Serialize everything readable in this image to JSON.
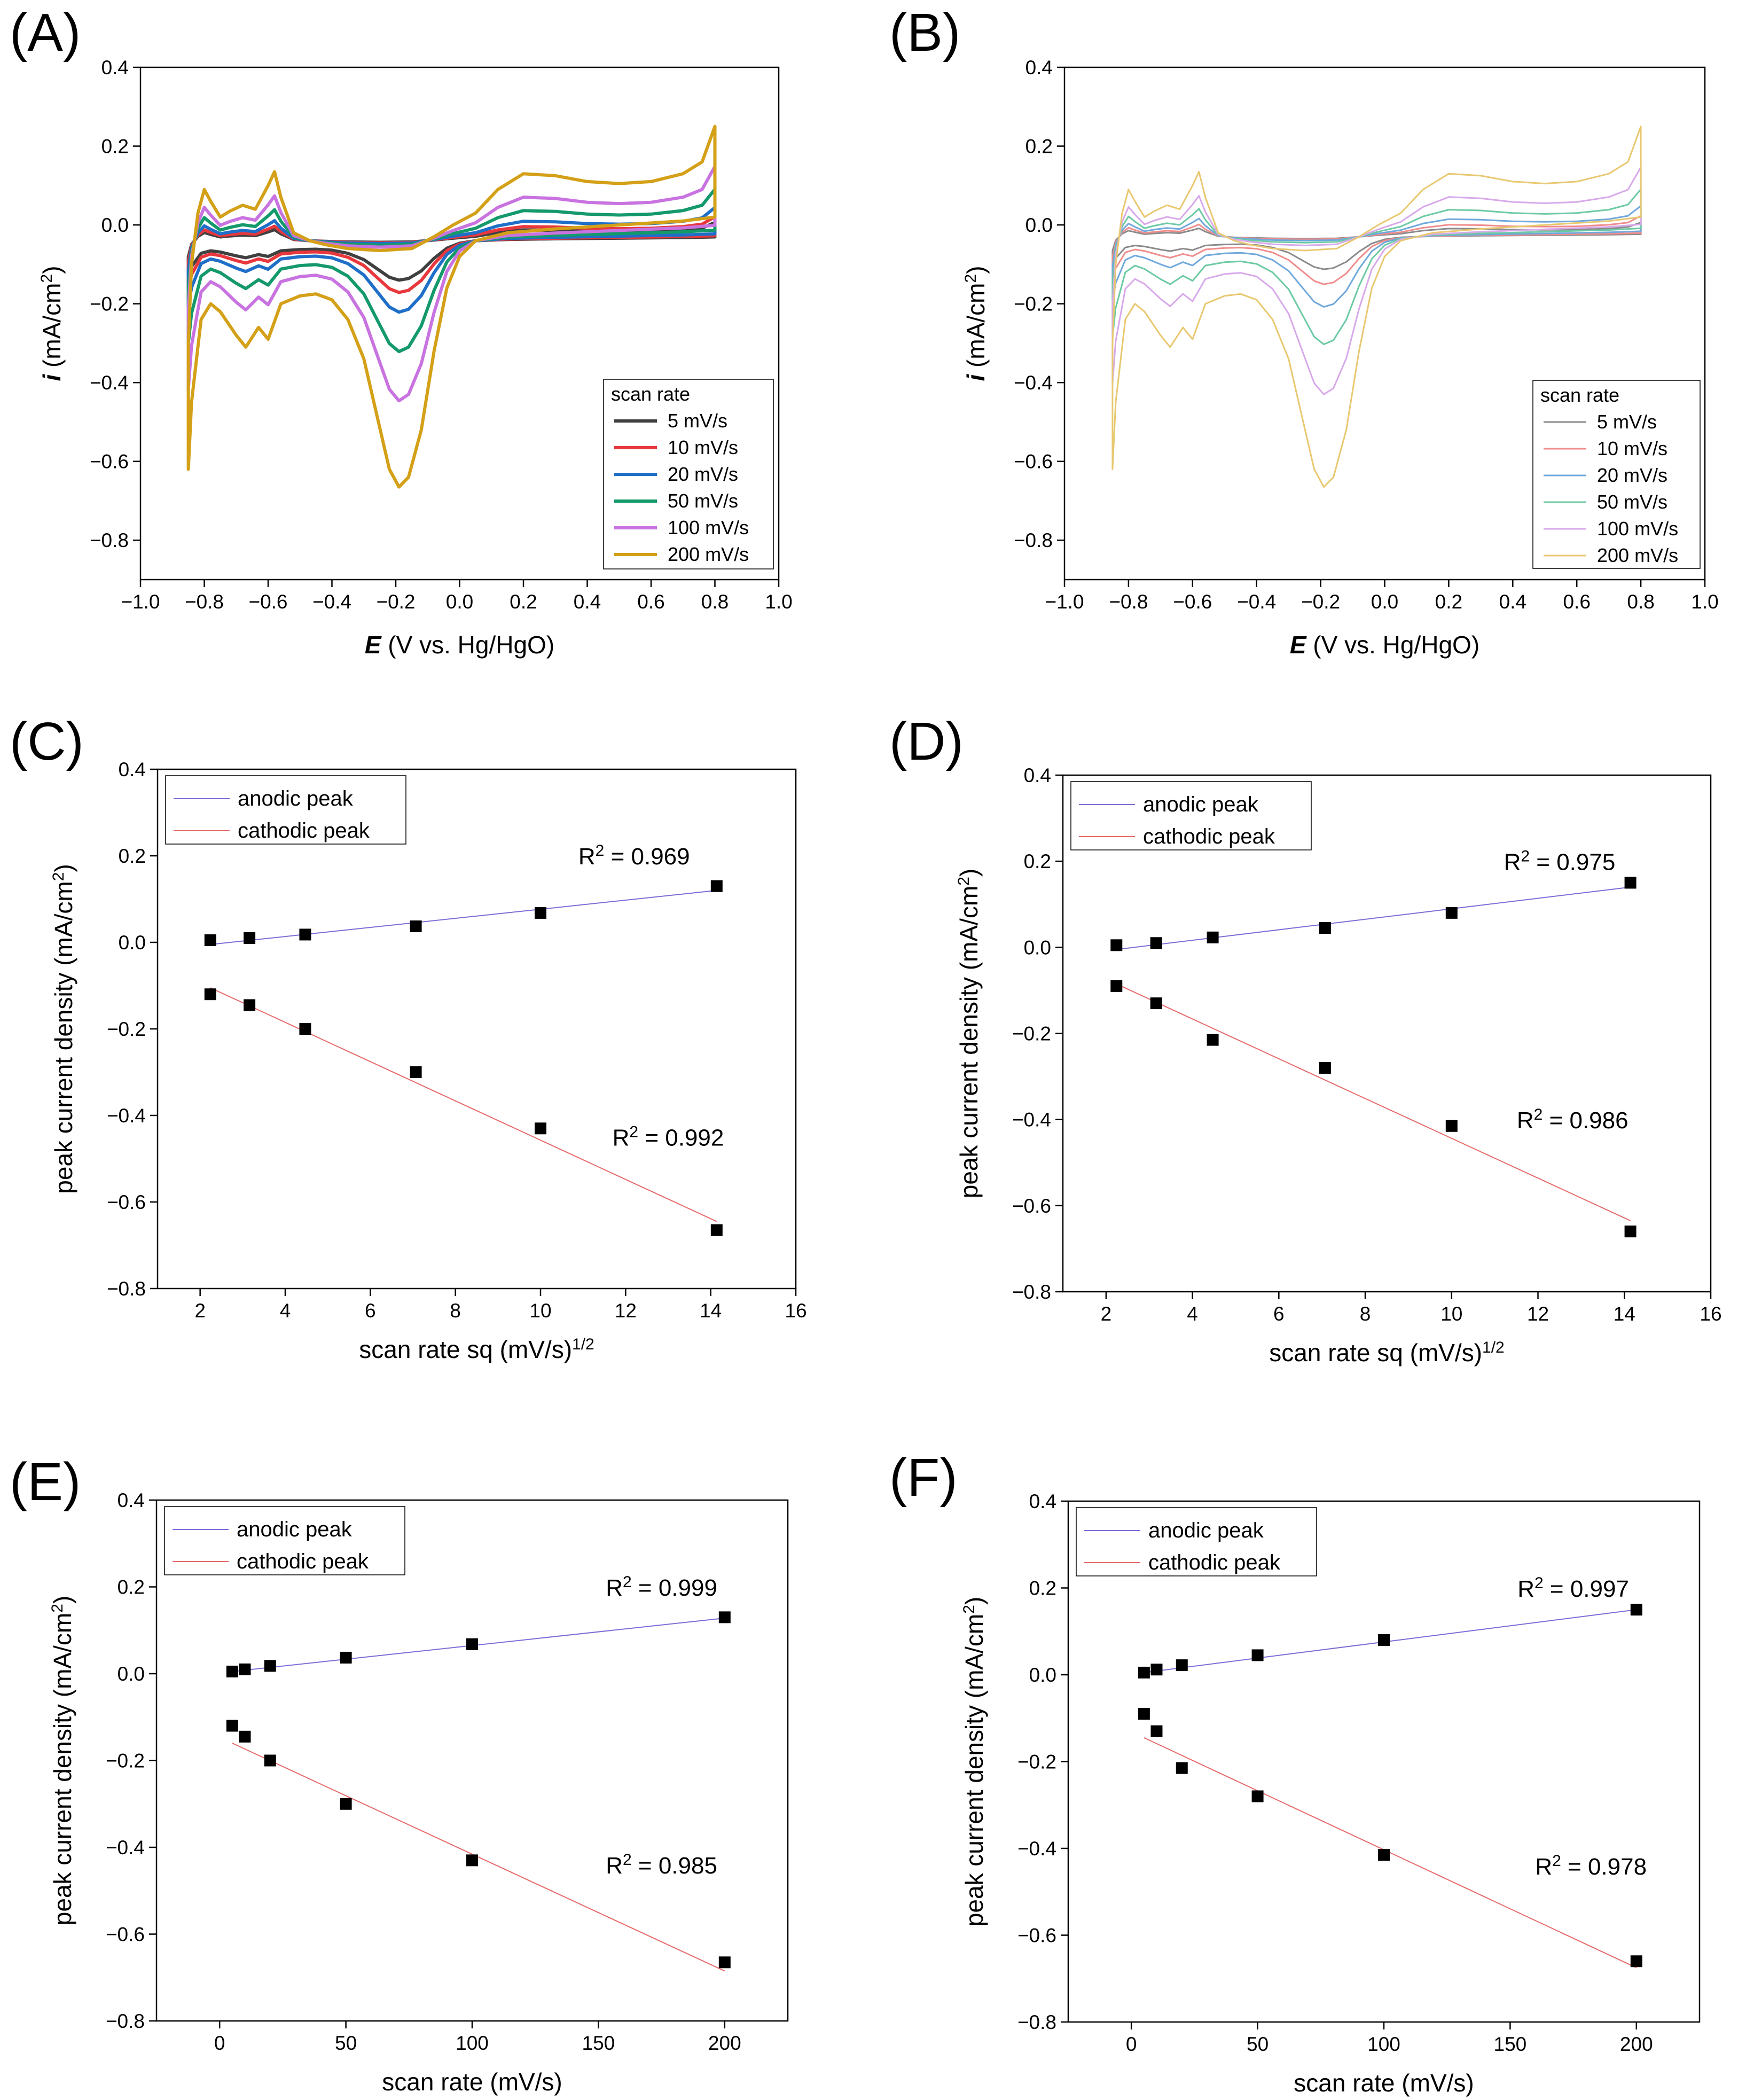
{
  "chart_data": [
    {
      "panel": "(A)",
      "type": "line",
      "xlabel_italic": "E",
      "xlabel_rest": " (V vs. Hg/HgO)",
      "ylabel_italic": "i",
      "ylabel_rest": " (mA/cm",
      "ylabel_sup": "2",
      "ylabel_end": ")",
      "xlim": [
        -1.0,
        1.0
      ],
      "ylim": [
        -0.9,
        0.4
      ],
      "xticks": [
        -1.0,
        -0.8,
        -0.6,
        -0.4,
        -0.2,
        0.0,
        0.2,
        0.4,
        0.6,
        0.8,
        1.0
      ],
      "xtick_labels": [
        "−1.0",
        "−0.8",
        "−0.6",
        "−0.4",
        "−0.2",
        "0.0",
        "0.2",
        "0.4",
        "0.6",
        "0.8",
        "1.0"
      ],
      "yticks": [
        -0.8,
        -0.6,
        -0.4,
        -0.2,
        0.0,
        0.2,
        0.4
      ],
      "ytick_labels": [
        "−0.8",
        "−0.6",
        "−0.4",
        "−0.2",
        "0.0",
        "0.2",
        "0.4"
      ],
      "legend_title": "scan rate",
      "series": [
        {
          "name": "5 mV/s",
          "color": "#404040",
          "scale": 0.16
        },
        {
          "name": "10 mV/s",
          "color": "#e8383d",
          "scale": 0.21
        },
        {
          "name": "20 mV/s",
          "color": "#1f6fc8",
          "scale": 0.29
        },
        {
          "name": "50 mV/s",
          "color": "#14996a",
          "scale": 0.45
        },
        {
          "name": "100 mV/s",
          "color": "#c873e0",
          "scale": 0.65
        },
        {
          "name": "200 mV/s",
          "color": "#d4a017",
          "scale": 1.0
        }
      ]
    },
    {
      "panel": "(B)",
      "type": "line",
      "xlabel_italic": "E",
      "xlabel_rest": " (V vs. Hg/HgO)",
      "ylabel_italic": "i",
      "ylabel_rest": " (mA/cm",
      "ylabel_sup": "2",
      "ylabel_end": ")",
      "xlim": [
        -1.0,
        1.0
      ],
      "ylim": [
        -0.9,
        0.4
      ],
      "xticks": [
        -1.0,
        -0.8,
        -0.6,
        -0.4,
        -0.2,
        0.0,
        0.2,
        0.4,
        0.6,
        0.8,
        1.0
      ],
      "xtick_labels": [
        "−1.0",
        "−0.8",
        "−0.6",
        "−0.4",
        "−0.2",
        "0.0",
        "0.2",
        "0.4",
        "0.6",
        "0.8",
        "1.0"
      ],
      "yticks": [
        -0.8,
        -0.6,
        -0.4,
        -0.2,
        0.0,
        0.2,
        0.4
      ],
      "ytick_labels": [
        "−0.8",
        "−0.6",
        "−0.4",
        "−0.2",
        "0.0",
        "0.2",
        "0.4"
      ],
      "legend_title": "scan rate",
      "series": [
        {
          "name": "5 mV/s",
          "color": "#8a8a8a",
          "scale": 0.13
        },
        {
          "name": "10 mV/s",
          "color": "#f08c8c",
          "scale": 0.19
        },
        {
          "name": "20 mV/s",
          "color": "#6fa8dc",
          "scale": 0.28
        },
        {
          "name": "50 mV/s",
          "color": "#6ccaa4",
          "scale": 0.43
        },
        {
          "name": "100 mV/s",
          "color": "#d8a9ea",
          "scale": 0.63
        },
        {
          "name": "200 mV/s",
          "color": "#e8c870",
          "scale": 1.0
        }
      ]
    },
    {
      "panel": "(C)",
      "type": "scatter",
      "xlabel": "scan rate sq (mV/s)",
      "xlabel_sup": "1/2",
      "ylabel": "peak current density (mA/cm",
      "ylabel_sup": "2",
      "ylabel_end": ")",
      "xlim": [
        1,
        16
      ],
      "ylim": [
        -0.8,
        0.4
      ],
      "xticks": [
        2,
        4,
        6,
        8,
        10,
        12,
        14,
        16
      ],
      "yticks": [
        -0.8,
        -0.6,
        -0.4,
        -0.2,
        0.0,
        0.2,
        0.4
      ],
      "ytick_labels": [
        "−0.8",
        "−0.6",
        "−0.4",
        "−0.2",
        "0.0",
        "0.2",
        "0.4"
      ],
      "x": [
        2.24,
        3.16,
        4.47,
        7.07,
        10.0,
        14.14
      ],
      "anodic": [
        0.005,
        0.01,
        0.018,
        0.037,
        0.068,
        0.13
      ],
      "cathodic": [
        -0.12,
        -0.145,
        -0.2,
        -0.3,
        -0.43,
        -0.665
      ],
      "anodic_fit": [
        [
          2.24,
          -0.005
        ],
        [
          14.14,
          0.12
        ]
      ],
      "cathodic_fit": [
        [
          2.24,
          -0.105
        ],
        [
          14.14,
          -0.645
        ]
      ],
      "legend": [
        "anodic peak",
        "cathodic peak"
      ],
      "r2_anodic_prefix": "R",
      "r2_anodic_sup": "2",
      "r2_anodic_value": " = 0.969",
      "r2_cathodic_prefix": "R",
      "r2_cathodic_sup": "2",
      "r2_cathodic_value": " = 0.992",
      "r2_anodic_at": [
        12.2,
        0.18
      ],
      "r2_cathodic_at": [
        13.0,
        -0.47
      ]
    },
    {
      "panel": "(D)",
      "type": "scatter",
      "xlabel": "scan rate sq (mV/s)",
      "xlabel_sup": "1/2",
      "ylabel": "peak current density (mA/cm",
      "ylabel_sup": "2",
      "ylabel_end": ")",
      "xlim": [
        1,
        16
      ],
      "ylim": [
        -0.8,
        0.4
      ],
      "xticks": [
        2,
        4,
        6,
        8,
        10,
        12,
        14,
        16
      ],
      "yticks": [
        -0.8,
        -0.6,
        -0.4,
        -0.2,
        0.0,
        0.2,
        0.4
      ],
      "ytick_labels": [
        "−0.8",
        "−0.6",
        "−0.4",
        "−0.2",
        "0.0",
        "0.2",
        "0.4"
      ],
      "x": [
        2.24,
        3.16,
        4.47,
        7.07,
        10.0,
        14.14
      ],
      "anodic": [
        0.005,
        0.01,
        0.023,
        0.045,
        0.08,
        0.15
      ],
      "cathodic": [
        -0.09,
        -0.13,
        -0.215,
        -0.28,
        -0.415,
        -0.66
      ],
      "anodic_fit": [
        [
          2.24,
          -0.005
        ],
        [
          14.14,
          0.14
        ]
      ],
      "cathodic_fit": [
        [
          2.24,
          -0.085
        ],
        [
          14.14,
          -0.635
        ]
      ],
      "legend": [
        "anodic peak",
        "cathodic peak"
      ],
      "r2_anodic_prefix": "R",
      "r2_anodic_sup": "2",
      "r2_anodic_value": " = 0.975",
      "r2_cathodic_prefix": "R",
      "r2_cathodic_sup": "2",
      "r2_cathodic_value": " = 0.986",
      "r2_anodic_at": [
        12.5,
        0.18
      ],
      "r2_cathodic_at": [
        12.8,
        -0.42
      ]
    },
    {
      "panel": "(E)",
      "type": "scatter",
      "xlabel": "scan rate (mV/s)",
      "ylabel": "peak current density (mA/cm",
      "ylabel_sup": "2",
      "ylabel_end": ")",
      "xlim": [
        -25,
        225
      ],
      "ylim": [
        -0.8,
        0.4
      ],
      "xticks": [
        0,
        50,
        100,
        150,
        200
      ],
      "yticks": [
        -0.8,
        -0.6,
        -0.4,
        -0.2,
        0.0,
        0.2,
        0.4
      ],
      "ytick_labels": [
        "−0.8",
        "−0.6",
        "−0.4",
        "−0.2",
        "0.0",
        "0.2",
        "0.4"
      ],
      "x": [
        5,
        10,
        20,
        50,
        100,
        200
      ],
      "anodic": [
        0.005,
        0.01,
        0.018,
        0.037,
        0.068,
        0.13
      ],
      "cathodic": [
        -0.12,
        -0.145,
        -0.2,
        -0.3,
        -0.43,
        -0.665
      ],
      "anodic_fit": [
        [
          5,
          0.005
        ],
        [
          200,
          0.128
        ]
      ],
      "cathodic_fit": [
        [
          5,
          -0.16
        ],
        [
          200,
          -0.685
        ]
      ],
      "legend": [
        "anodic peak",
        "cathodic peak"
      ],
      "r2_anodic_prefix": "R",
      "r2_anodic_sup": "2",
      "r2_anodic_value": " = 0.999",
      "r2_cathodic_prefix": "R",
      "r2_cathodic_sup": "2",
      "r2_cathodic_value": " = 0.985",
      "r2_anodic_at": [
        175,
        0.18
      ],
      "r2_cathodic_at": [
        175,
        -0.46
      ]
    },
    {
      "panel": "(F)",
      "type": "scatter",
      "xlabel": "scan rate (mV/s)",
      "ylabel": "peak current density (mA/cm",
      "ylabel_sup": "2",
      "ylabel_end": ")",
      "xlim": [
        -25,
        225
      ],
      "ylim": [
        -0.8,
        0.4
      ],
      "xticks": [
        0,
        50,
        100,
        150,
        200
      ],
      "yticks": [
        -0.8,
        -0.6,
        -0.4,
        -0.2,
        0.0,
        0.2,
        0.4
      ],
      "ytick_labels": [
        "−0.8",
        "−0.6",
        "−0.4",
        "−0.2",
        "0.0",
        "0.2",
        "0.4"
      ],
      "x": [
        5,
        10,
        20,
        50,
        100,
        200
      ],
      "anodic": [
        0.005,
        0.012,
        0.022,
        0.045,
        0.08,
        0.15
      ],
      "cathodic": [
        -0.09,
        -0.13,
        -0.215,
        -0.28,
        -0.415,
        -0.66
      ],
      "anodic_fit": [
        [
          5,
          0.005
        ],
        [
          200,
          0.15
        ]
      ],
      "cathodic_fit": [
        [
          5,
          -0.145
        ],
        [
          200,
          -0.675
        ]
      ],
      "legend": [
        "anodic peak",
        "cathodic peak"
      ],
      "r2_anodic_prefix": "R",
      "r2_anodic_sup": "2",
      "r2_anodic_value": " = 0.997",
      "r2_cathodic_prefix": "R",
      "r2_cathodic_sup": "2",
      "r2_cathodic_value": " = 0.978",
      "r2_anodic_at": [
        175,
        0.18
      ],
      "r2_cathodic_at": [
        182,
        -0.46
      ]
    }
  ]
}
